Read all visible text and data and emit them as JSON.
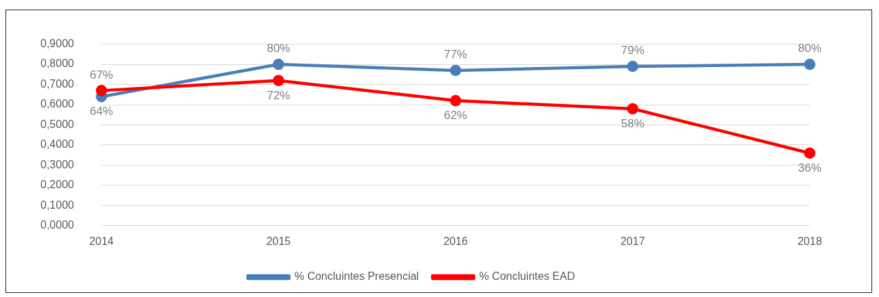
{
  "chart_data": {
    "type": "line",
    "categories": [
      "2014",
      "2015",
      "2016",
      "2017",
      "2018"
    ],
    "series": [
      {
        "name": "% Concluintes Presencial",
        "color": "#4a7ebb",
        "values": [
          0.64,
          0.8,
          0.77,
          0.79,
          0.8
        ],
        "value_labels": [
          "64%",
          "80%",
          "77%",
          "79%",
          "80%"
        ]
      },
      {
        "name": "% Concluintes EAD",
        "color": "#ff0000",
        "values": [
          0.67,
          0.72,
          0.62,
          0.58,
          0.36
        ],
        "value_labels": [
          "67%",
          "72%",
          "62%",
          "58%",
          "36%"
        ]
      }
    ],
    "ylim": [
      0,
      0.9
    ],
    "yticks": [
      {
        "value": 0,
        "label": "0,0000"
      },
      {
        "value": 0.1,
        "label": "0,1000"
      },
      {
        "value": 0.2,
        "label": "0,2000"
      },
      {
        "value": 0.3,
        "label": "0,3000"
      },
      {
        "value": 0.4,
        "label": "0,4000"
      },
      {
        "value": 0.5,
        "label": "0,5000"
      },
      {
        "value": 0.6,
        "label": "0,6000"
      },
      {
        "value": 0.7,
        "label": "0,7000"
      },
      {
        "value": 0.8,
        "label": "0,8000"
      },
      {
        "value": 0.9,
        "label": "0,9000"
      }
    ],
    "grid": "y",
    "legend": "bottom",
    "marker": "circle",
    "line_style": "solid"
  }
}
